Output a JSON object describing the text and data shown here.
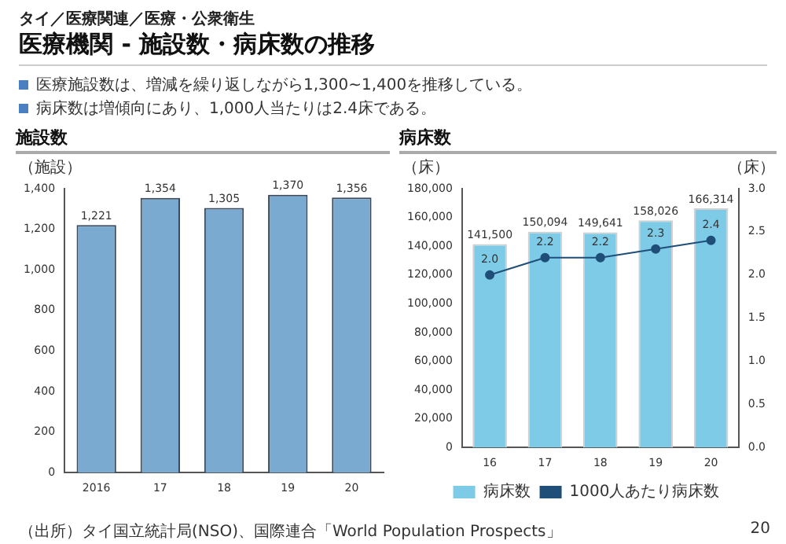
{
  "chart_data": [
    {
      "type": "bar",
      "title": "施設数",
      "ylabel": "（施設）",
      "annotations": [
        "タイ／医療関連／医療・公衆衛生",
        "医療機関 - 施設数・病床数の推移",
        "医療施設数は、増減を繰り返しながら1,300~1,400を推移している。",
        "病床数は増傾向にあり、1,000人当たりは2.4床である。",
        "（出所）タイ国立統計局(NSO)、国際連合「World Population Prospects」",
        "20"
      ],
      "categories": [
        "2016",
        "17",
        "18",
        "19",
        "20"
      ],
      "series": [
        {
          "color": "#7aaacf",
          "values": [
            1221,
            1354,
            1305,
            1370,
            1356
          ],
          "value_labels": [
            "1,221",
            "1,354",
            "1,305",
            "1,370",
            "1,356"
          ]
        }
      ],
      "ylim": [
        0,
        1400
      ],
      "yticks": [
        0,
        {
          "value": 200,
          "label": "200"
        },
        {
          "value": 400,
          "label": "400"
        },
        {
          "value": 600,
          "label": "600"
        },
        {
          "value": 800,
          "label": "800"
        },
        {
          "value": 1000,
          "label": "1,000"
        },
        {
          "value": 1200,
          "label": "1,200"
        },
        {
          "value": 1400,
          "label": "1,400"
        }
      ],
      "legend": false
    },
    {
      "type": "bar",
      "title": "病床数",
      "ylabel": "（床）",
      "y2label": "（床）",
      "categories": [
        "16",
        "17",
        "18",
        "19",
        "20"
      ],
      "series": [
        {
          "name": "病床数",
          "color": "#7ecbe8",
          "values": [
            141500,
            150094,
            149641,
            158026,
            166314
          ],
          "value_labels": [
            "141,500",
            "150,094",
            "149,641",
            "158,026",
            "166,314"
          ]
        },
        {
          "name": "1000人あたり病床数",
          "type": "line",
          "axis": "y2",
          "color": "#1f4e79",
          "values": [
            2.0,
            2.2,
            2.2,
            2.3,
            2.4
          ],
          "value_labels": [
            "2.0",
            "2.2",
            "2.2",
            "2.3",
            "2.4"
          ]
        }
      ],
      "ylim": [
        0,
        180000
      ],
      "yticks": [
        0,
        {
          "value": 20000,
          "label": "20,000"
        },
        {
          "value": 40000,
          "label": "40,000"
        },
        {
          "value": 60000,
          "label": "60,000"
        },
        {
          "value": 80000,
          "label": "80,000"
        },
        {
          "value": 100000,
          "label": "100,000"
        },
        {
          "value": 120000,
          "label": "120,000"
        },
        {
          "value": 140000,
          "label": "140,000"
        },
        {
          "value": 160000,
          "label": "160,000"
        },
        {
          "value": 180000,
          "label": "180,000"
        }
      ],
      "y2lim": [
        0,
        3
      ],
      "y2ticks": [
        {
          "value": 0,
          "label": "0.0"
        },
        {
          "value": 0.5,
          "label": "0.5"
        },
        {
          "value": 1,
          "label": "1.0"
        },
        {
          "value": 1.5,
          "label": "1.5"
        },
        {
          "value": 2,
          "label": "2.0"
        },
        {
          "value": 2.5,
          "label": "2.5"
        },
        {
          "value": 3,
          "label": "3.0"
        }
      ],
      "legend": "bottom",
      "marker": "circle",
      "line_style": "solid"
    }
  ]
}
